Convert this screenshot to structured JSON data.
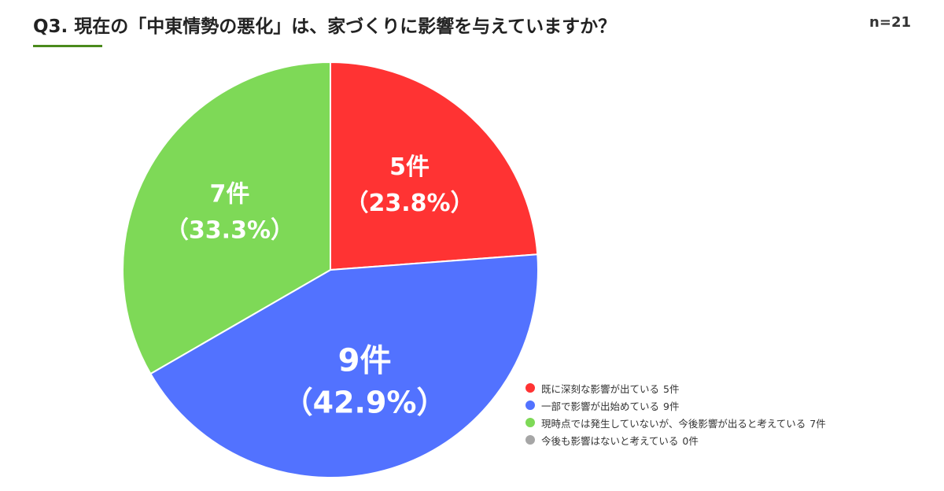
{
  "header": {
    "title": "Q3. 現在の「中東情勢の悪化」は、家づくりに影響を与えていますか？",
    "sample_size": "n=21",
    "underline_color": "#4a8a1c"
  },
  "chart_data": {
    "type": "pie",
    "total": 21,
    "start_angle_deg": 0,
    "direction": "clockwise",
    "legend_position": "bottom-right",
    "slices": [
      {
        "label": "既に深刻な影響が出ている",
        "count_label": "5件",
        "value": 5,
        "percent_label": "（23.8%）",
        "color": "#ff3333"
      },
      {
        "label": "一部で影響が出始めている",
        "count_label": "9件",
        "value": 9,
        "percent_label": "（42.9%）",
        "color": "#5272ff"
      },
      {
        "label": "現時点では発生していないが、今後影響が出ると考えている",
        "count_label": "7件",
        "value": 7,
        "percent_label": "（33.3%）",
        "color": "#7ed957"
      },
      {
        "label": "今後も影響はないと考えている",
        "count_label": "0件",
        "value": 0,
        "percent_label": "",
        "color": "#a6a6a6"
      }
    ]
  }
}
